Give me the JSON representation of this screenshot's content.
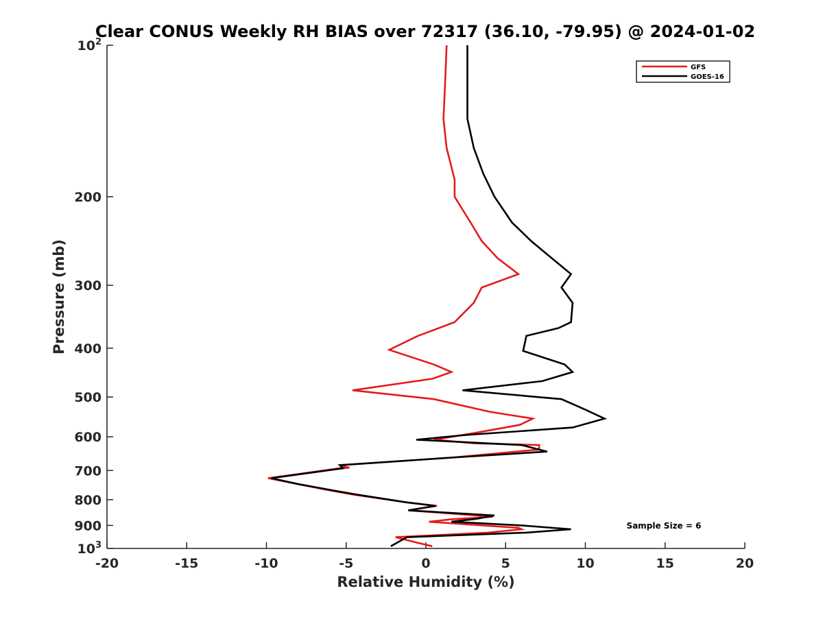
{
  "chart_data": {
    "type": "line",
    "title": "Clear CONUS Weekly RH BIAS over 72317 (36.10, -79.95) @ 2024-01-02",
    "xlabel": "Relative Humidity (%)",
    "ylabel": "Pressure (mb)",
    "xlim": [
      -20,
      20
    ],
    "ylim": [
      1000,
      100
    ],
    "yscale": "log",
    "y_reversed": true,
    "x_ticks": [
      "-20",
      "-15",
      "-10",
      "-5",
      "0",
      "5",
      "10",
      "15",
      "20"
    ],
    "y_ticks": [
      {
        "value": 100,
        "base": "10",
        "exp": "2"
      },
      {
        "value": 200,
        "label": "200"
      },
      {
        "value": 300,
        "label": "300"
      },
      {
        "value": 400,
        "label": "400"
      },
      {
        "value": 500,
        "label": "500"
      },
      {
        "value": 600,
        "label": "600"
      },
      {
        "value": 700,
        "label": "700"
      },
      {
        "value": 800,
        "label": "800"
      },
      {
        "value": 900,
        "label": "900"
      },
      {
        "value": 1000,
        "base": "10",
        "exp": "3"
      }
    ],
    "grid": false,
    "legend_position": "top-right",
    "annotation": "Sample Size = 6",
    "series": [
      {
        "name": "GFS",
        "color": "#e41a1c",
        "points": [
          [
            1.3,
            100
          ],
          [
            1.2,
            120
          ],
          [
            1.1,
            140
          ],
          [
            1.3,
            160
          ],
          [
            1.8,
            185
          ],
          [
            1.8,
            200
          ],
          [
            2.8,
            225
          ],
          [
            3.5,
            245
          ],
          [
            4.5,
            265
          ],
          [
            5.8,
            285
          ],
          [
            3.5,
            303
          ],
          [
            3.0,
            325
          ],
          [
            1.8,
            355
          ],
          [
            -0.5,
            378
          ],
          [
            -2.3,
            403
          ],
          [
            0.5,
            431
          ],
          [
            1.6,
            446
          ],
          [
            0.4,
            460
          ],
          [
            -4.6,
            485
          ],
          [
            0.5,
            505
          ],
          [
            4.0,
            535
          ],
          [
            6.7,
            552
          ],
          [
            5.9,
            568
          ],
          [
            3.0,
            590
          ],
          [
            0.5,
            608
          ],
          [
            3.0,
            618
          ],
          [
            7.1,
            623
          ],
          [
            7.1,
            636
          ],
          [
            1.6,
            660
          ],
          [
            -5.4,
            683
          ],
          [
            -4.8,
            691
          ],
          [
            -5.4,
            693
          ],
          [
            -9.9,
            725
          ],
          [
            -8.0,
            745
          ],
          [
            -5.9,
            768
          ],
          [
            -4.6,
            781
          ],
          [
            -1.2,
            810
          ],
          [
            0.7,
            823
          ],
          [
            -1.1,
            840
          ],
          [
            3.2,
            860
          ],
          [
            4.2,
            865
          ],
          [
            1.6,
            875
          ],
          [
            0.2,
            885
          ],
          [
            2.0,
            893
          ],
          [
            5.8,
            910
          ],
          [
            6.0,
            916
          ],
          [
            3.9,
            930
          ],
          [
            -1.9,
            950
          ],
          [
            -0.5,
            975
          ],
          [
            0.4,
            990
          ]
        ]
      },
      {
        "name": "GOES-16",
        "color": "#000000",
        "points": [
          [
            2.6,
            100
          ],
          [
            2.6,
            120
          ],
          [
            2.6,
            140
          ],
          [
            3.0,
            160
          ],
          [
            3.6,
            180
          ],
          [
            4.3,
            200
          ],
          [
            5.4,
            225
          ],
          [
            6.6,
            245
          ],
          [
            7.9,
            265
          ],
          [
            9.1,
            285
          ],
          [
            8.5,
            303
          ],
          [
            9.2,
            325
          ],
          [
            9.1,
            355
          ],
          [
            8.3,
            365
          ],
          [
            6.3,
            378
          ],
          [
            6.1,
            405
          ],
          [
            8.7,
            431
          ],
          [
            9.2,
            446
          ],
          [
            7.3,
            465
          ],
          [
            2.3,
            485
          ],
          [
            8.5,
            505
          ],
          [
            10.0,
            530
          ],
          [
            11.2,
            552
          ],
          [
            9.2,
            575
          ],
          [
            2.5,
            595
          ],
          [
            -0.6,
            608
          ],
          [
            6.0,
            623
          ],
          [
            7.6,
            642
          ],
          [
            1.6,
            660
          ],
          [
            -5.4,
            683
          ],
          [
            -5.2,
            693
          ],
          [
            -9.7,
            725
          ],
          [
            -8.0,
            745
          ],
          [
            -5.7,
            768
          ],
          [
            -4.4,
            781
          ],
          [
            -1.2,
            810
          ],
          [
            0.6,
            823
          ],
          [
            -1.1,
            840
          ],
          [
            4.3,
            860
          ],
          [
            3.2,
            873
          ],
          [
            1.6,
            885
          ],
          [
            6.0,
            900
          ],
          [
            9.1,
            916
          ],
          [
            6.3,
            930
          ],
          [
            -1.2,
            950
          ],
          [
            -2.2,
            990
          ]
        ]
      }
    ]
  }
}
